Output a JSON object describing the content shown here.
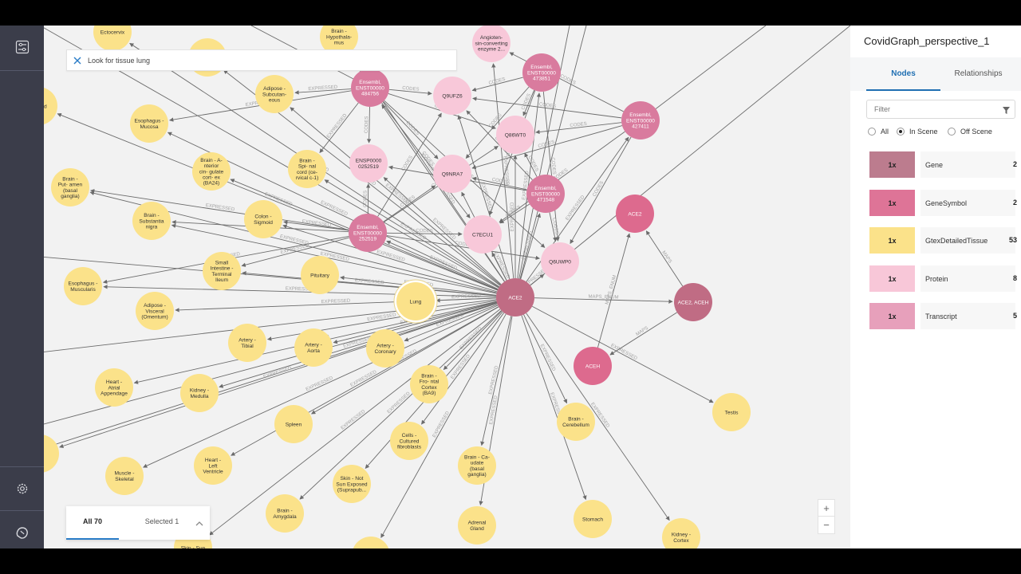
{
  "search": {
    "query": "Look for tissue lung"
  },
  "results": {
    "all_label": "All 70",
    "selected_label": "Selected 1"
  },
  "panel": {
    "title": "CovidGraph_perspective_1",
    "tabs": [
      {
        "label": "Nodes"
      },
      {
        "label": "Relationships"
      }
    ],
    "filter_placeholder": "Filter",
    "radios": [
      {
        "label": "All"
      },
      {
        "label": "In Scene"
      },
      {
        "label": "Off Scene"
      }
    ],
    "categories": [
      {
        "mult": "1x",
        "name": "Gene",
        "count": "2",
        "color": "#bc7c8e"
      },
      {
        "mult": "1x",
        "name": "GeneSymbol",
        "count": "2",
        "color": "#de7497"
      },
      {
        "mult": "1x",
        "name": "GtexDetailedTissue",
        "count": "53",
        "color": "#fbe28a"
      },
      {
        "mult": "1x",
        "name": "Protein",
        "count": "8",
        "color": "#f8c7d8"
      },
      {
        "mult": "1x",
        "name": "Transcript",
        "count": "5",
        "color": "#e7a0bb"
      }
    ]
  },
  "icons": [
    "sliders-icon",
    "gear-icon",
    "brain-icon",
    "close-icon",
    "funnel-icon",
    "chevron-up-icon",
    "zoom-in-icon",
    "zoom-out-icon"
  ],
  "graph": {
    "colors": {
      "gene": "#c06c84",
      "genesymbol": "#dd6a8e",
      "tissue": "#fbe28a",
      "protein": "#f8c8d9",
      "transcript": "#d97b9e",
      "edge": "#6b6b6b",
      "edge_label": "#a3a3a3"
    },
    "edge_labels": [
      "EXPRESSED",
      "CODES",
      "MAPS",
      "MAPS_ENUM"
    ],
    "nodes": [
      {
        "id": "ACE2",
        "label": "ACE2",
        "type": "gene"
      },
      {
        "id": "ACE2ACEH",
        "label": "ACE2, ACEH",
        "type": "gene"
      },
      {
        "id": "ACE2sym",
        "label": "ACE2",
        "type": "genesymbol"
      },
      {
        "id": "ACEH",
        "label": "ACEH",
        "type": "genesymbol"
      },
      {
        "id": "T427411",
        "label": "Ensembl, ENST00000 427411",
        "type": "transcript"
      },
      {
        "id": "T473851",
        "label": "Ensembl, ENST00000 473851",
        "type": "transcript"
      },
      {
        "id": "T484756",
        "label": "Ensembl, ENST00000 484756",
        "type": "transcript"
      },
      {
        "id": "T471548",
        "label": "Ensembl, ENST00000 471548",
        "type": "transcript"
      },
      {
        "id": "T252519",
        "label": "Ensembl, ENST00000 252519",
        "type": "transcript"
      },
      {
        "id": "Angio",
        "label": "Angioten- sin-converting enzyme 2...",
        "type": "protein"
      },
      {
        "id": "Q9UFZ6",
        "label": "Q9UFZ6",
        "type": "protein"
      },
      {
        "id": "Q86WT0",
        "label": "Q86WT0",
        "type": "protein"
      },
      {
        "id": "Q9NRA7",
        "label": "Q9NRA7",
        "type": "protein"
      },
      {
        "id": "C7ECU1",
        "label": "C7ECU1",
        "type": "protein"
      },
      {
        "id": "Q6UWP0",
        "label": "Q6UWP0",
        "type": "protein"
      },
      {
        "id": "ENSP",
        "label": "ENSP0000 0252519",
        "type": "protein"
      },
      {
        "id": "Lung",
        "label": "Lung",
        "type": "tissue",
        "selected": true
      },
      {
        "id": "Ectocervix",
        "label": "Ectocervix",
        "type": "tissue"
      },
      {
        "id": "Hypoth",
        "label": "Brain - Hypothala- mus",
        "type": "tissue"
      },
      {
        "id": "Unk1",
        "label": "",
        "type": "tissue"
      },
      {
        "id": "Adipose",
        "label": "Adipose - Subcutan- eous",
        "type": "tissue"
      },
      {
        "id": "Salivary",
        "label": "aliv- nd",
        "type": "tissue"
      },
      {
        "id": "EsoMuc",
        "label": "Esophagus - Mucosa",
        "type": "tissue"
      },
      {
        "id": "BA24",
        "label": "Brain - A- nterior cin- gulate cort- ex (BA24)",
        "type": "tissue"
      },
      {
        "id": "Spinal",
        "label": "Brain - Spi- nal cord (ce- rvical c-1)",
        "type": "tissue"
      },
      {
        "id": "Putamen",
        "label": "Brain - Put- amen (basal ganglia)",
        "type": "tissue"
      },
      {
        "id": "Substantia",
        "label": "Brain - Substantia nigra",
        "type": "tissue"
      },
      {
        "id": "Colon",
        "label": "Colon - Sigmoid",
        "type": "tissue"
      },
      {
        "id": "SmallInt",
        "label": "Small Intestine - Terminal Ileum",
        "type": "tissue"
      },
      {
        "id": "Pituitary",
        "label": "Pituitary",
        "type": "tissue"
      },
      {
        "id": "EsoMus",
        "label": "Esophagus - Muscularis",
        "type": "tissue"
      },
      {
        "id": "AdiVisc",
        "label": "Adipose - Visceral (Omentum)",
        "type": "tissue"
      },
      {
        "id": "Tibial",
        "label": "Artery - Tibial",
        "type": "tissue"
      },
      {
        "id": "Aorta",
        "label": "Artery - Aorta",
        "type": "tissue"
      },
      {
        "id": "Coronary",
        "label": "Artery - Coronary",
        "type": "tissue"
      },
      {
        "id": "HeartAtrial",
        "label": "Heart - Atrial Appendage",
        "type": "tissue"
      },
      {
        "id": "KidneyMed",
        "label": "Kidney - Medulla",
        "type": "tissue"
      },
      {
        "id": "Frontal",
        "label": "Brain - Fro- ntal Cortex (BA9)",
        "type": "tissue"
      },
      {
        "id": "Spleen",
        "label": "Spleen",
        "type": "tissue"
      },
      {
        "id": "Fibro",
        "label": "Cells - Cultured fibroblasts",
        "type": "tissue"
      },
      {
        "id": "Cerebellum",
        "label": "Brain - Cerebellum",
        "type": "tissue"
      },
      {
        "id": "Testis",
        "label": "Testis",
        "type": "tissue"
      },
      {
        "id": "Caudate",
        "label": "Brain - Ca- udate (basal ganglia)",
        "type": "tissue"
      },
      {
        "id": "Muscle",
        "label": "Muscle - Skeletal",
        "type": "tissue"
      },
      {
        "id": "HeartLV",
        "label": "Heart - Left Ventricle",
        "type": "tissue"
      },
      {
        "id": "SkinNS",
        "label": "Skin - Not Sun Exposed (Suprapub...",
        "type": "tissue"
      },
      {
        "id": "Amygdala",
        "label": "Brain - Amygdala",
        "type": "tissue"
      },
      {
        "id": "Adrenal",
        "label": "Adrenal Gland",
        "type": "tissue"
      },
      {
        "id": "Stomach",
        "label": "Stomach",
        "type": "tissue"
      },
      {
        "id": "KidneyCortex",
        "label": "Kidney - Cortex",
        "type": "tissue"
      },
      {
        "id": "SkinSun",
        "label": "Skin - Sun",
        "type": "tissue"
      },
      {
        "id": "Unk2",
        "label": "",
        "type": "tissue"
      },
      {
        "id": "Unk3",
        "label": "",
        "type": "tissue"
      }
    ]
  }
}
